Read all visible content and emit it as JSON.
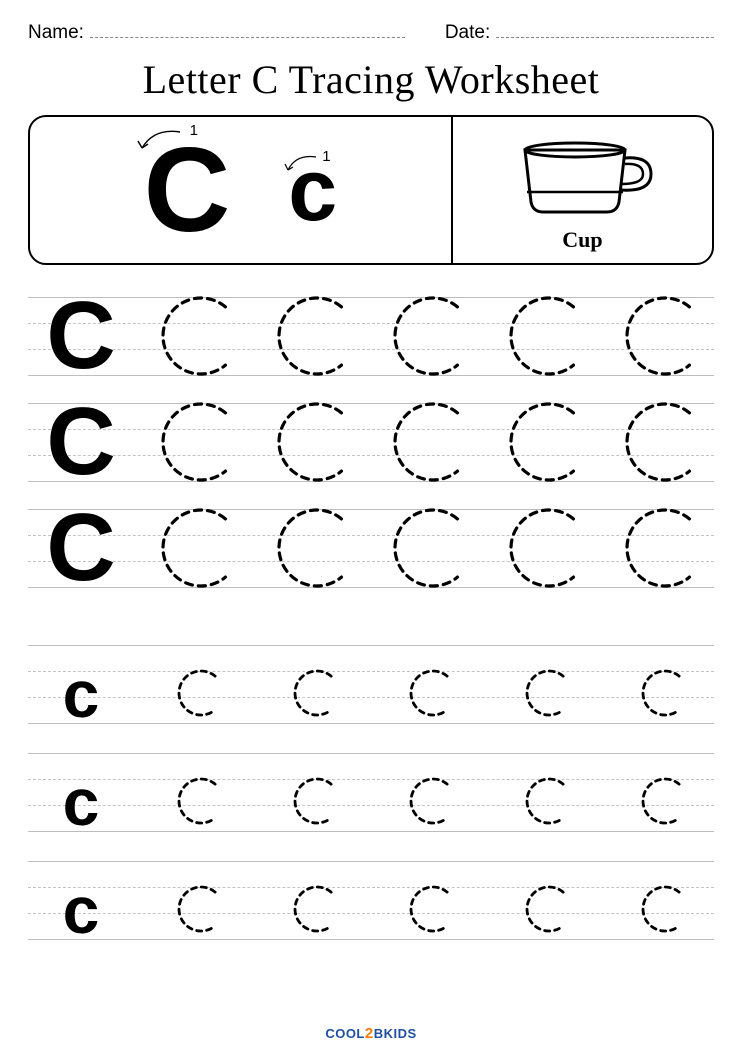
{
  "header": {
    "name_label": "Name:",
    "date_label": "Date:"
  },
  "title": "Letter C Tracing Worksheet",
  "reference": {
    "uppercase": "C",
    "lowercase": "c",
    "stroke_number": "1",
    "image_label": "Cup"
  },
  "tracing": {
    "uppercase_rows": 3,
    "lowercase_rows": 3,
    "letters_per_row": 6,
    "solid_uppercase": "C",
    "solid_lowercase": "c",
    "dashed_stroke_color": "#000000",
    "dashed_stroke_width_upper": 3.2,
    "dashed_stroke_width_lower": 2.8,
    "dash_pattern_upper": "7,6",
    "dash_pattern_lower": "5,5",
    "upper_arc_radius": 38,
    "lower_arc_radius": 22
  },
  "colors": {
    "background": "#ffffff",
    "text": "#000000",
    "guideline": "#bdbdbd",
    "guideline_dashed": "#c4c4c4",
    "field_underline": "#888888",
    "logo_blue": "#1e4fa3",
    "logo_orange": "#ff7a00"
  },
  "footer": {
    "part1": "COOL",
    "part2": "2",
    "part3": "BKIDS"
  }
}
